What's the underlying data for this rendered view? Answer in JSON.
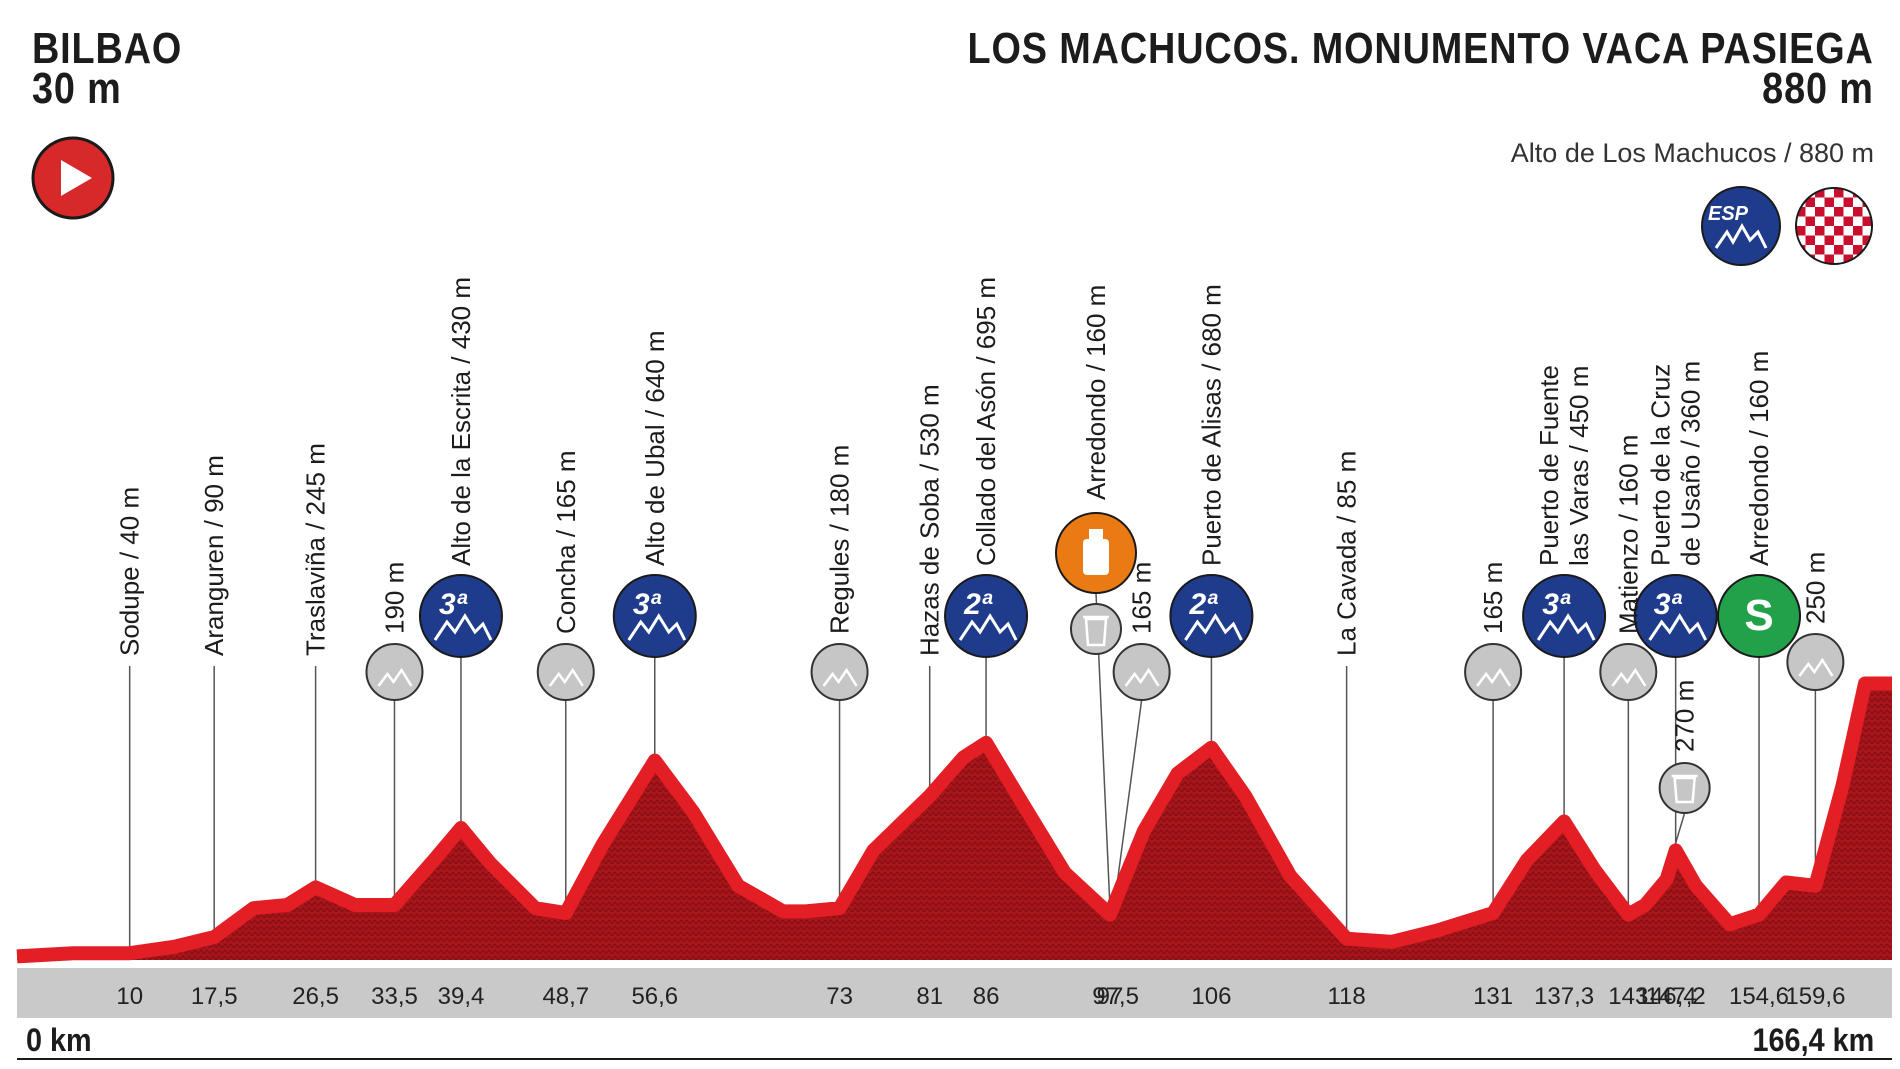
{
  "start": {
    "name": "BILBAO",
    "altitude": "30 m"
  },
  "finish": {
    "name": "LOS MACHUCOS. MONUMENTO VACA PASIEGA",
    "altitude": "880 m",
    "summit": "Alto de Los Machucos / 880 m",
    "badge_esp": "ESP"
  },
  "distance": {
    "start_label": "0 km",
    "end_label": "166,4 km"
  },
  "colors": {
    "profile_red": "#b5141a",
    "profile_top": "#e31e24",
    "cat_blue": "#1f3b8c",
    "cp_grey": "#c6c6c6",
    "sprint_green": "#22a04a",
    "feed_orange": "#ea7a14",
    "start_red": "#d7282a",
    "axis_bar": "#c9c9c9"
  },
  "chart_data": {
    "type": "area",
    "total_km": 166.4,
    "ylim": [
      0,
      900
    ],
    "profile": [
      [
        0,
        30
      ],
      [
        5,
        40
      ],
      [
        10,
        40
      ],
      [
        14,
        60
      ],
      [
        17.5,
        90
      ],
      [
        21,
        180
      ],
      [
        24,
        190
      ],
      [
        26.5,
        245
      ],
      [
        30,
        190
      ],
      [
        33.5,
        190
      ],
      [
        37,
        330
      ],
      [
        39.4,
        430
      ],
      [
        42,
        320
      ],
      [
        46,
        180
      ],
      [
        48.7,
        165
      ],
      [
        52,
        380
      ],
      [
        56.6,
        640
      ],
      [
        60,
        480
      ],
      [
        64,
        250
      ],
      [
        68,
        170
      ],
      [
        70,
        170
      ],
      [
        73,
        180
      ],
      [
        76,
        360
      ],
      [
        81,
        530
      ],
      [
        84,
        650
      ],
      [
        86,
        695
      ],
      [
        89,
        520
      ],
      [
        93,
        290
      ],
      [
        97,
        160
      ],
      [
        100,
        420
      ],
      [
        103,
        600
      ],
      [
        106,
        680
      ],
      [
        109,
        530
      ],
      [
        113,
        280
      ],
      [
        118,
        85
      ],
      [
        122,
        75
      ],
      [
        126,
        110
      ],
      [
        131,
        165
      ],
      [
        134,
        330
      ],
      [
        137.3,
        450
      ],
      [
        140,
        300
      ],
      [
        143,
        160
      ],
      [
        144.5,
        190
      ],
      [
        146.4,
        270
      ],
      [
        147.2,
        360
      ],
      [
        149,
        250
      ],
      [
        152,
        130
      ],
      [
        154.6,
        160
      ],
      [
        157,
        260
      ],
      [
        159.6,
        250
      ],
      [
        162,
        560
      ],
      [
        164,
        880
      ],
      [
        166.4,
        880
      ]
    ],
    "ticks": [
      "10",
      "17,5",
      "26,5",
      "33,5",
      "39,4",
      "48,7",
      "56,6",
      "73",
      "81",
      "86",
      "97",
      "97,5",
      "106",
      "118",
      "131",
      "137,3",
      "143",
      "146,4",
      "147,2",
      "154,6",
      "159,6"
    ],
    "tick_km": [
      10,
      17.5,
      26.5,
      33.5,
      39.4,
      48.7,
      56.6,
      73,
      81,
      86,
      97,
      97.5,
      106,
      118,
      131,
      137.3,
      143,
      146.4,
      147.2,
      154.6,
      159.6
    ],
    "places": [
      {
        "km": 10,
        "label": [
          "Sodupe / 40 m"
        ],
        "marker": "none",
        "topAlt": 475
      },
      {
        "km": 17.5,
        "label": [
          "Aranguren / 90 m"
        ],
        "marker": "none",
        "topAlt": 475
      },
      {
        "km": 26.5,
        "label": [
          "Traslaviña / 245 m"
        ],
        "marker": "none",
        "topAlt": 475
      },
      {
        "km": 33.5,
        "label": [
          "190 m"
        ],
        "marker": "cp",
        "topAlt": 475
      },
      {
        "km": 39.4,
        "label": [
          "Alto de la Escrita / 430 m"
        ],
        "marker": "cat",
        "cat": "3ª",
        "topAlt": 475
      },
      {
        "km": 48.7,
        "label": [
          "Concha / 165 m"
        ],
        "marker": "cp",
        "topAlt": 475
      },
      {
        "km": 56.6,
        "label": [
          "Alto de Ubal / 640 m"
        ],
        "marker": "cat",
        "cat": "3ª",
        "topAlt": 475
      },
      {
        "km": 73,
        "label": [
          "Regules / 180 m"
        ],
        "marker": "cp",
        "topAlt": 475
      },
      {
        "km": 81,
        "label": [
          "Hazas de Soba / 530 m"
        ],
        "marker": "none",
        "topAlt": 475
      },
      {
        "km": 86,
        "label": [
          "Collado del Asón / 695 m"
        ],
        "marker": "cat",
        "cat": "2ª",
        "topAlt": 475
      },
      {
        "km": 97,
        "label": [
          "Arredondo / 160 m"
        ],
        "marker": "feed",
        "topAlt": 475
      },
      {
        "km": 97.5,
        "label": [
          "165 m"
        ],
        "marker": "cp",
        "topAlt": 475
      },
      {
        "km": 106,
        "label": [
          "Puerto de Alisas / 680 m"
        ],
        "marker": "cat",
        "cat": "2ª",
        "topAlt": 475
      },
      {
        "km": 118,
        "label": [
          "La Cavada / 85 m"
        ],
        "marker": "none",
        "topAlt": 475
      },
      {
        "km": 131,
        "label": [
          "165 m"
        ],
        "marker": "cp",
        "topAlt": 475
      },
      {
        "km": 137.3,
        "label": [
          "Puerto de Fuente",
          "las Varas / 450 m"
        ],
        "marker": "cat",
        "cat": "3ª",
        "topAlt": 475
      },
      {
        "km": 143,
        "label": [
          "Matienzo / 160 m"
        ],
        "marker": "cp",
        "topAlt": 475
      },
      {
        "km": 146.4,
        "label": [
          "270 m"
        ],
        "marker": "waste",
        "topAlt": 475
      },
      {
        "km": 147.2,
        "label": [
          "Puerto de la Cruz",
          "de Usaño / 360 m"
        ],
        "marker": "cat",
        "cat": "3ª",
        "topAlt": 475
      },
      {
        "km": 154.6,
        "label": [
          "Arredondo / 160 m"
        ],
        "marker": "sprint",
        "cat": "S",
        "topAlt": 475
      },
      {
        "km": 159.6,
        "label": [
          "250 m"
        ],
        "marker": "cp",
        "topAlt": 475
      }
    ]
  }
}
